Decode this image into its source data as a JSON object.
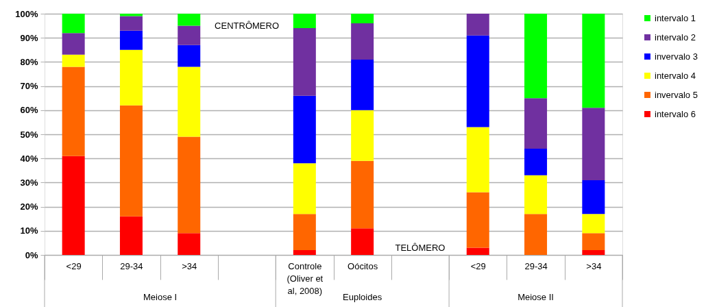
{
  "chart_data": {
    "type": "bar",
    "stacked": true,
    "categories": [
      "<29",
      "29-34",
      ">34",
      null,
      "Controle (Oliver et al, 2008)",
      "Oócitos",
      null,
      "<29",
      "29-34",
      ">34"
    ],
    "series": [
      {
        "name": "intervalo 6",
        "color": "#ff0000",
        "values": [
          41,
          16,
          9,
          null,
          2,
          11,
          null,
          3,
          0,
          2
        ]
      },
      {
        "name": "invervalo 5",
        "color": "#ff6600",
        "values": [
          37,
          46,
          40,
          null,
          15,
          28,
          null,
          23,
          17,
          7
        ]
      },
      {
        "name": "intervalo 4",
        "color": "#ffff00",
        "values": [
          5,
          23,
          29,
          null,
          21,
          21,
          null,
          27,
          16,
          8
        ]
      },
      {
        "name": "invervalo 3",
        "color": "#0000ff",
        "values": [
          0,
          8,
          9,
          null,
          28,
          21,
          null,
          38,
          11,
          14
        ]
      },
      {
        "name": "intervalo 2",
        "color": "#7030a0",
        "values": [
          9,
          6,
          8,
          null,
          28,
          15,
          null,
          9,
          21,
          30
        ]
      },
      {
        "name": "intervalo 1",
        "color": "#00ff00",
        "values": [
          8,
          1,
          5,
          null,
          6,
          4,
          null,
          0,
          35,
          39
        ]
      }
    ],
    "ylim": [
      0,
      100
    ],
    "yticks": [
      {
        "value": 0,
        "label": "0%"
      },
      {
        "value": 10,
        "label": "10%"
      },
      {
        "value": 20,
        "label": "20%"
      },
      {
        "value": 30,
        "label": "30%"
      },
      {
        "value": 40,
        "label": "40%"
      },
      {
        "value": 50,
        "label": "50%"
      },
      {
        "value": 60,
        "label": "60%"
      },
      {
        "value": 70,
        "label": "70%"
      },
      {
        "value": 80,
        "label": "80%"
      },
      {
        "value": 90,
        "label": "90%"
      },
      {
        "value": 100,
        "label": "100%"
      }
    ],
    "grid": "y",
    "legend": "right",
    "annotations": [
      "Meiose I",
      "Euploides",
      "Meiose II",
      "CENTRÔMERO",
      "TELÔMERO"
    ]
  }
}
